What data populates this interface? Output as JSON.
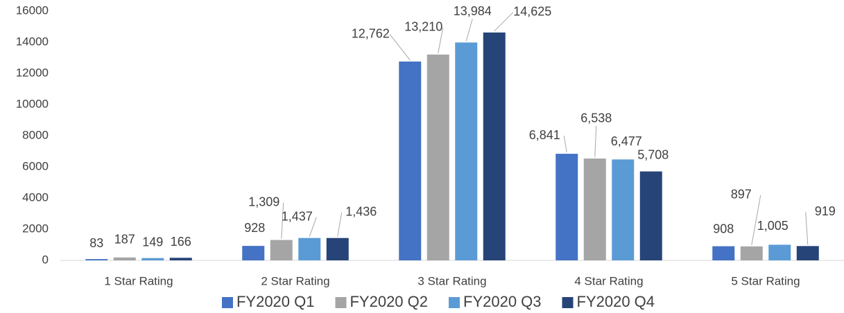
{
  "chart_data": {
    "type": "bar",
    "categories": [
      "1 Star Rating",
      "2 Star Rating",
      "3 Star Rating",
      "4 Star Rating",
      "5 Star Rating"
    ],
    "series": [
      {
        "name": "FY2020 Q1",
        "color": "#4472c4",
        "values": [
          83,
          928,
          12762,
          6841,
          908
        ],
        "value_labels": [
          "83",
          "928",
          "12,762",
          "6,841",
          "908"
        ]
      },
      {
        "name": "FY2020 Q2",
        "color": "#a5a5a5",
        "values": [
          187,
          1309,
          13210,
          6538,
          897
        ],
        "value_labels": [
          "187",
          "1,309",
          "13,210",
          "6,538",
          "897"
        ]
      },
      {
        "name": "FY2020 Q3",
        "color": "#5b9bd5",
        "values": [
          149,
          1437,
          13984,
          6477,
          1005
        ],
        "value_labels": [
          "149",
          "1,437",
          "13,984",
          "6,477",
          "1,005"
        ]
      },
      {
        "name": "FY2020 Q4",
        "color": "#264478",
        "values": [
          166,
          1436,
          14625,
          5708,
          919
        ],
        "value_labels": [
          "166",
          "1,436",
          "14,625",
          "5,708",
          "919"
        ]
      }
    ],
    "ylim": [
      0,
      16000
    ],
    "yticks": [
      0,
      2000,
      4000,
      6000,
      8000,
      10000,
      12000,
      14000,
      16000
    ],
    "grid": false,
    "legend": "bottom"
  }
}
